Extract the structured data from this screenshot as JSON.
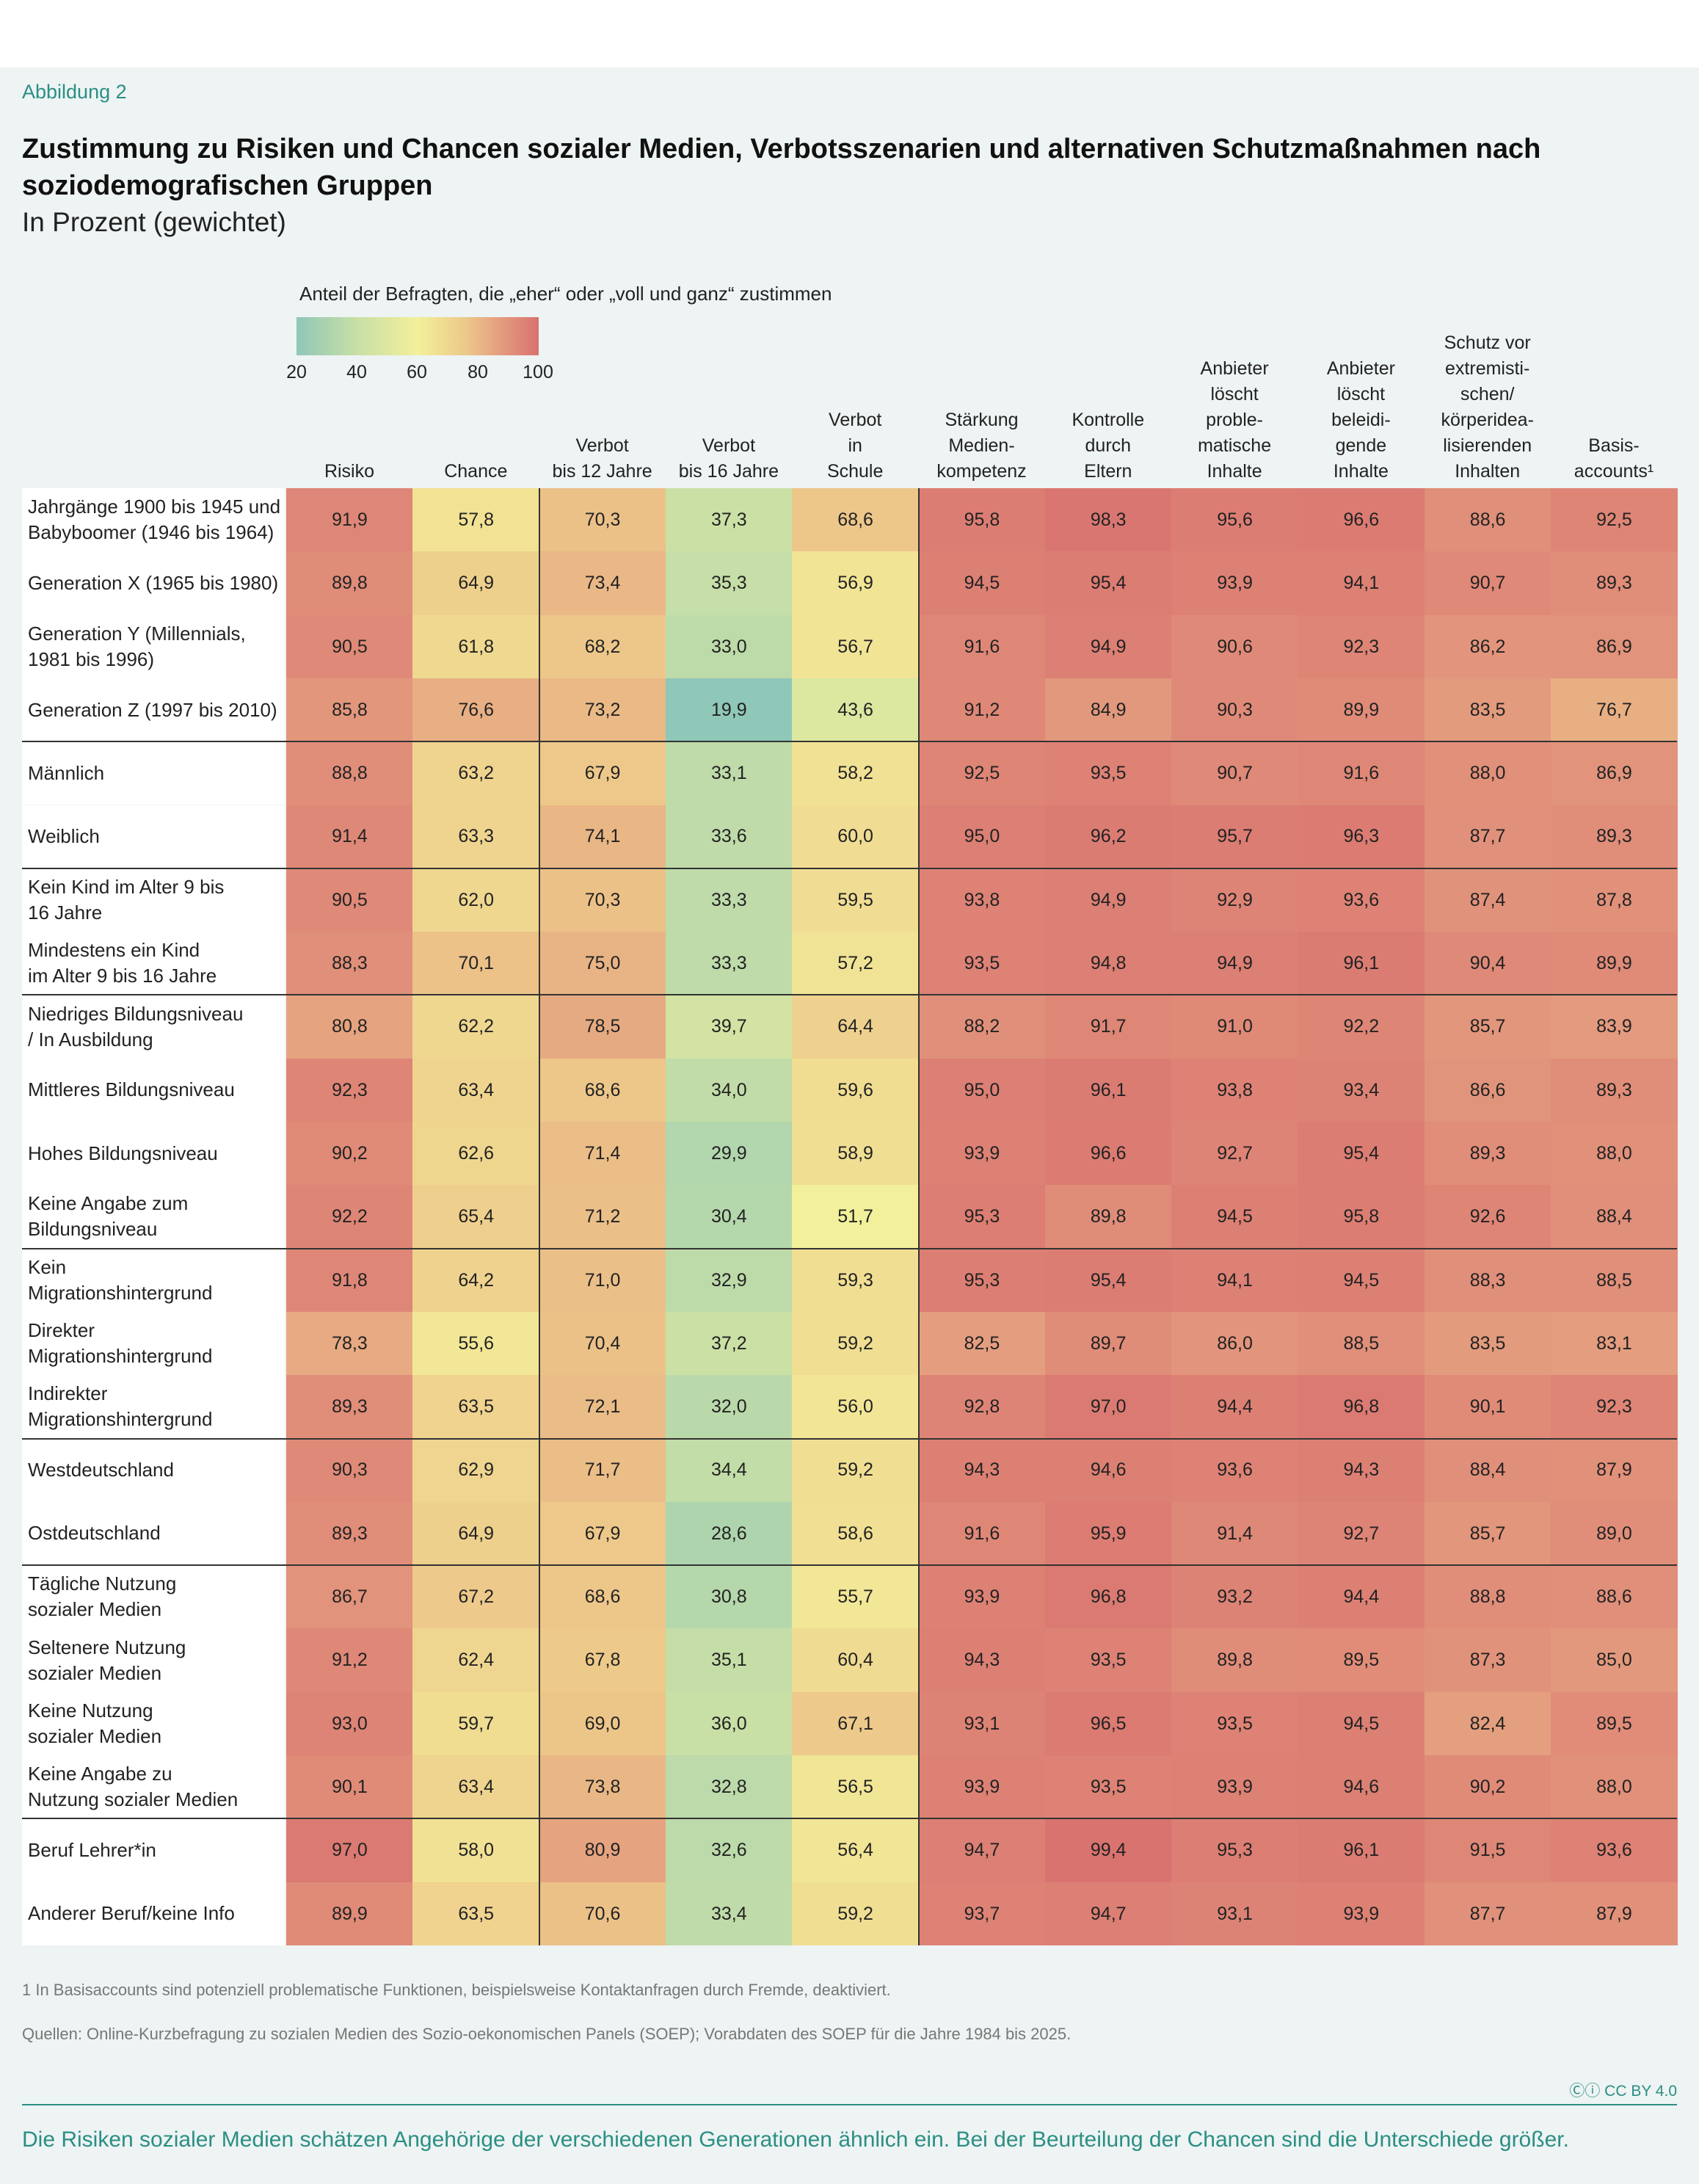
{
  "figure_label": "Abbildung 2",
  "title": "Zustimmung zu Risiken und Chancen sozialer Medien, Verbotsszenarien und alternativen Schutzmaßnahmen nach soziodemografischen Gruppen",
  "subtitle": "In Prozent (gewichtet)",
  "legend": {
    "title": "Anteil der Befragten, die „eher“ oder „voll und ganz“ zustimmen",
    "ticks": [
      "20",
      "40",
      "60",
      "80",
      "100"
    ],
    "colors": [
      "#8fc7b8",
      "#c8dfa6",
      "#f3f09a",
      "#edc88a",
      "#e39a7e",
      "#d9726f"
    ]
  },
  "chart_data": {
    "type": "heatmap",
    "value_range": [
      20,
      100
    ],
    "columns": [
      [
        "Risiko"
      ],
      [
        "Chance"
      ],
      [
        "Verbot",
        "bis 12 Jahre"
      ],
      [
        "Verbot",
        "bis 16 Jahre"
      ],
      [
        "Verbot",
        "in",
        "Schule"
      ],
      [
        "Stärkung",
        "Medien-",
        "kompetenz"
      ],
      [
        "Kontrolle",
        "durch",
        "Eltern"
      ],
      [
        "Anbieter",
        "löscht",
        "proble-",
        "matische",
        "Inhalte"
      ],
      [
        "Anbieter",
        "löscht",
        "beleidi-",
        "gende",
        "Inhalte"
      ],
      [
        "Schutz vor",
        "extremisti-",
        "schen/",
        "körperidea-",
        "lisierenden",
        "Inhalten"
      ],
      [
        "Basis-",
        "accounts¹"
      ]
    ],
    "rows": [
      {
        "label": [
          "Jahrgänge 1900 bis 1945 und",
          "Babyboomer (1946 bis 1964)"
        ],
        "values": [
          91.9,
          57.8,
          70.3,
          37.3,
          68.6,
          95.8,
          98.3,
          95.6,
          96.6,
          88.6,
          92.5
        ]
      },
      {
        "label": [
          "Generation X (1965 bis 1980)"
        ],
        "values": [
          89.8,
          64.9,
          73.4,
          35.3,
          56.9,
          94.5,
          95.4,
          93.9,
          94.1,
          90.7,
          89.3
        ]
      },
      {
        "label": [
          "Generation Y (Millennials,",
          "1981 bis 1996)"
        ],
        "values": [
          90.5,
          61.8,
          68.2,
          33.0,
          56.7,
          91.6,
          94.9,
          90.6,
          92.3,
          86.2,
          86.9
        ]
      },
      {
        "label": [
          "Generation Z (1997 bis 2010)"
        ],
        "values": [
          85.8,
          76.6,
          73.2,
          19.9,
          43.6,
          91.2,
          84.9,
          90.3,
          89.9,
          83.5,
          76.7
        ]
      },
      {
        "label": [
          "Männlich"
        ],
        "values": [
          88.8,
          63.2,
          67.9,
          33.1,
          58.2,
          92.5,
          93.5,
          90.7,
          91.6,
          88.0,
          86.9
        ]
      },
      {
        "label": [
          "Weiblich"
        ],
        "values": [
          91.4,
          63.3,
          74.1,
          33.6,
          60.0,
          95.0,
          96.2,
          95.7,
          96.3,
          87.7,
          89.3
        ]
      },
      {
        "label": [
          "Kein Kind im Alter 9 bis",
          "16 Jahre"
        ],
        "values": [
          90.5,
          62.0,
          70.3,
          33.3,
          59.5,
          93.8,
          94.9,
          92.9,
          93.6,
          87.4,
          87.8
        ]
      },
      {
        "label": [
          "Mindestens ein Kind",
          "im Alter 9 bis 16 Jahre"
        ],
        "values": [
          88.3,
          70.1,
          75.0,
          33.3,
          57.2,
          93.5,
          94.8,
          94.9,
          96.1,
          90.4,
          89.9
        ]
      },
      {
        "label": [
          "Niedriges Bildungsniveau",
          "/ In Ausbildung"
        ],
        "values": [
          80.8,
          62.2,
          78.5,
          39.7,
          64.4,
          88.2,
          91.7,
          91.0,
          92.2,
          85.7,
          83.9
        ]
      },
      {
        "label": [
          "Mittleres Bildungsniveau"
        ],
        "values": [
          92.3,
          63.4,
          68.6,
          34.0,
          59.6,
          95.0,
          96.1,
          93.8,
          93.4,
          86.6,
          89.3
        ]
      },
      {
        "label": [
          "Hohes Bildungsniveau"
        ],
        "values": [
          90.2,
          62.6,
          71.4,
          29.9,
          58.9,
          93.9,
          96.6,
          92.7,
          95.4,
          89.3,
          88.0
        ]
      },
      {
        "label": [
          "Keine Angabe zum",
          "Bildungsniveau"
        ],
        "values": [
          92.2,
          65.4,
          71.2,
          30.4,
          51.7,
          95.3,
          89.8,
          94.5,
          95.8,
          92.6,
          88.4
        ]
      },
      {
        "label": [
          "Kein",
          "Migrationshintergrund"
        ],
        "values": [
          91.8,
          64.2,
          71.0,
          32.9,
          59.3,
          95.3,
          95.4,
          94.1,
          94.5,
          88.3,
          88.5
        ]
      },
      {
        "label": [
          "Direkter",
          "Migrationshintergrund"
        ],
        "values": [
          78.3,
          55.6,
          70.4,
          37.2,
          59.2,
          82.5,
          89.7,
          86.0,
          88.5,
          83.5,
          83.1
        ]
      },
      {
        "label": [
          "Indirekter",
          "Migrationshintergrund"
        ],
        "values": [
          89.3,
          63.5,
          72.1,
          32.0,
          56.0,
          92.8,
          97.0,
          94.4,
          96.8,
          90.1,
          92.3
        ]
      },
      {
        "label": [
          "Westdeutschland"
        ],
        "values": [
          90.3,
          62.9,
          71.7,
          34.4,
          59.2,
          94.3,
          94.6,
          93.6,
          94.3,
          88.4,
          87.9
        ]
      },
      {
        "label": [
          "Ostdeutschland"
        ],
        "values": [
          89.3,
          64.9,
          67.9,
          28.6,
          58.6,
          91.6,
          95.9,
          91.4,
          92.7,
          85.7,
          89.0
        ]
      },
      {
        "label": [
          "Tägliche Nutzung",
          "sozialer Medien"
        ],
        "values": [
          86.7,
          67.2,
          68.6,
          30.8,
          55.7,
          93.9,
          96.8,
          93.2,
          94.4,
          88.8,
          88.6
        ]
      },
      {
        "label": [
          "Seltenere Nutzung",
          "sozialer Medien"
        ],
        "values": [
          91.2,
          62.4,
          67.8,
          35.1,
          60.4,
          94.3,
          93.5,
          89.8,
          89.5,
          87.3,
          85.0
        ]
      },
      {
        "label": [
          "Keine Nutzung",
          "sozialer Medien"
        ],
        "values": [
          93.0,
          59.7,
          69.0,
          36.0,
          67.1,
          93.1,
          96.5,
          93.5,
          94.5,
          82.4,
          89.5
        ]
      },
      {
        "label": [
          "Keine Angabe zu",
          "Nutzung sozialer Medien"
        ],
        "values": [
          90.1,
          63.4,
          73.8,
          32.8,
          56.5,
          93.9,
          93.5,
          93.9,
          94.6,
          90.2,
          88.0
        ]
      },
      {
        "label": [
          "Beruf Lehrer*in"
        ],
        "values": [
          97.0,
          58.0,
          80.9,
          32.6,
          56.4,
          94.7,
          99.4,
          95.3,
          96.1,
          91.5,
          93.6
        ]
      },
      {
        "label": [
          "Anderer Beruf/keine Info"
        ],
        "values": [
          89.9,
          63.5,
          70.6,
          33.4,
          59.2,
          93.7,
          94.7,
          93.1,
          93.9,
          87.7,
          87.9
        ]
      }
    ],
    "group_separators_after_rows": [
      3,
      5,
      7,
      11,
      14,
      16,
      20
    ]
  },
  "footnote": "1  In Basisaccounts sind potenziell problematische Funktionen, beispielsweise Kontaktanfragen durch Fremde, deaktiviert.",
  "source": "Quellen: Online-Kurzbefragung zu sozialen Medien des Sozio-oekonomischen Panels (SOEP); Vorabdaten des SOEP für die Jahre 1984 bis 2025.",
  "license": "CC BY 4.0",
  "caption": "Die Risiken sozialer Medien schätzen Angehörige der verschiedenen Generationen ähnlich ein. Bei der Beurteilung der Chancen sind die Unterschiede größer."
}
